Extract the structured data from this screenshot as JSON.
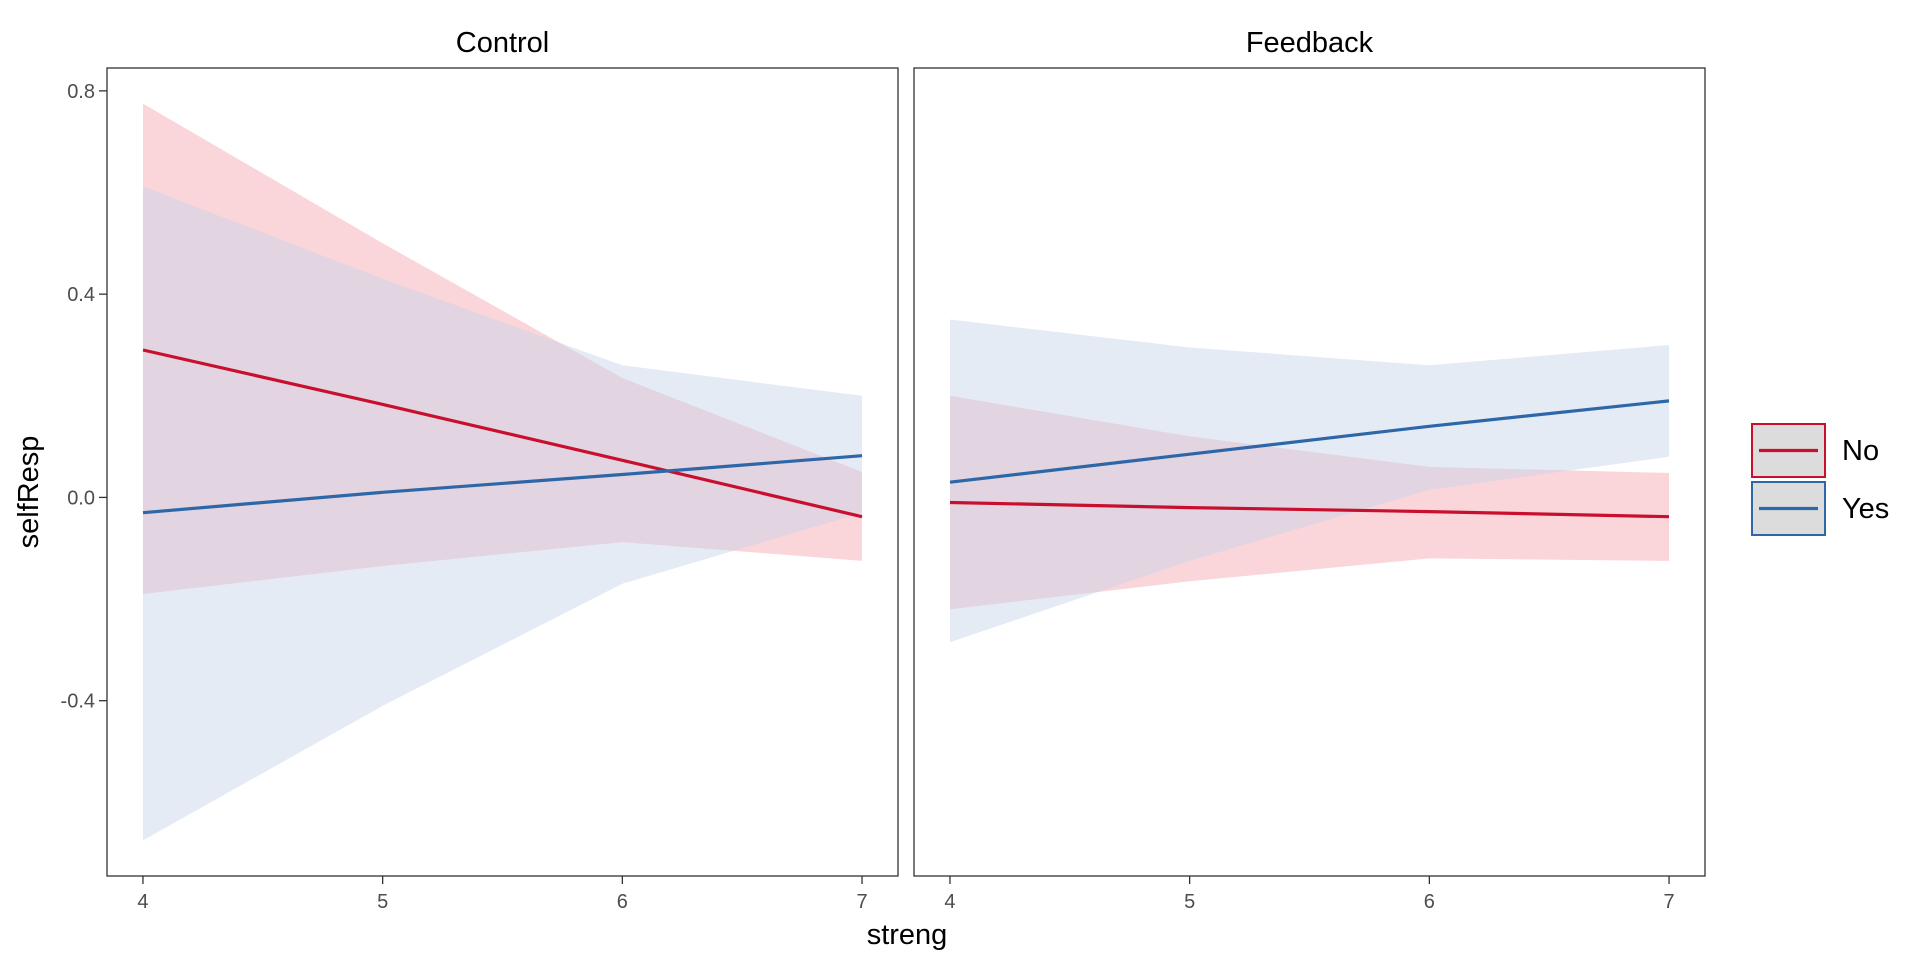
{
  "chart_data": {
    "type": "line",
    "xlabel": "streng",
    "ylabel": "selfResp",
    "xlim": [
      3.85,
      7.15
    ],
    "ylim": [
      -0.745,
      0.845
    ],
    "x_ticks": [
      4,
      5,
      6,
      7
    ],
    "x_tick_labels": [
      "4",
      "5",
      "6",
      "7"
    ],
    "y_ticks": [
      0.8,
      0.4,
      0.0,
      -0.4
    ],
    "y_tick_labels": [
      "0.8",
      "0.4",
      "0.0",
      "-0.4"
    ],
    "grid": false,
    "legend": {
      "position": "right",
      "entries": [
        {
          "label": "No",
          "color": "#C8102E"
        },
        {
          "label": "Yes",
          "color": "#2E67A8"
        }
      ]
    },
    "band_colors": {
      "No": "#F4A3AE",
      "Yes": "#C5D3E6"
    },
    "band_opacity": 0.45,
    "panels": [
      {
        "title": "Control",
        "series": [
          {
            "name": "No",
            "x": [
              4,
              5,
              6,
              7
            ],
            "y": [
              0.29,
              0.183,
              0.073,
              -0.038
            ],
            "lower": [
              -0.19,
              -0.135,
              -0.088,
              -0.125
            ],
            "upper": [
              0.775,
              0.5,
              0.235,
              0.05
            ]
          },
          {
            "name": "Yes",
            "x": [
              4,
              5,
              6,
              7
            ],
            "y": [
              -0.03,
              0.01,
              0.045,
              0.082
            ],
            "lower": [
              -0.675,
              -0.41,
              -0.17,
              -0.03
            ],
            "upper": [
              0.612,
              0.43,
              0.26,
              0.2
            ]
          }
        ]
      },
      {
        "title": "Feedback",
        "series": [
          {
            "name": "No",
            "x": [
              4,
              5,
              6,
              7
            ],
            "y": [
              -0.01,
              -0.02,
              -0.028,
              -0.038
            ],
            "lower": [
              -0.22,
              -0.165,
              -0.12,
              -0.125
            ],
            "upper": [
              0.2,
              0.12,
              0.06,
              0.048
            ]
          },
          {
            "name": "Yes",
            "x": [
              4,
              5,
              6,
              7
            ],
            "y": [
              0.03,
              0.085,
              0.14,
              0.19
            ],
            "lower": [
              -0.285,
              -0.125,
              0.015,
              0.08
            ],
            "upper": [
              0.35,
              0.295,
              0.26,
              0.3
            ]
          }
        ]
      }
    ]
  }
}
